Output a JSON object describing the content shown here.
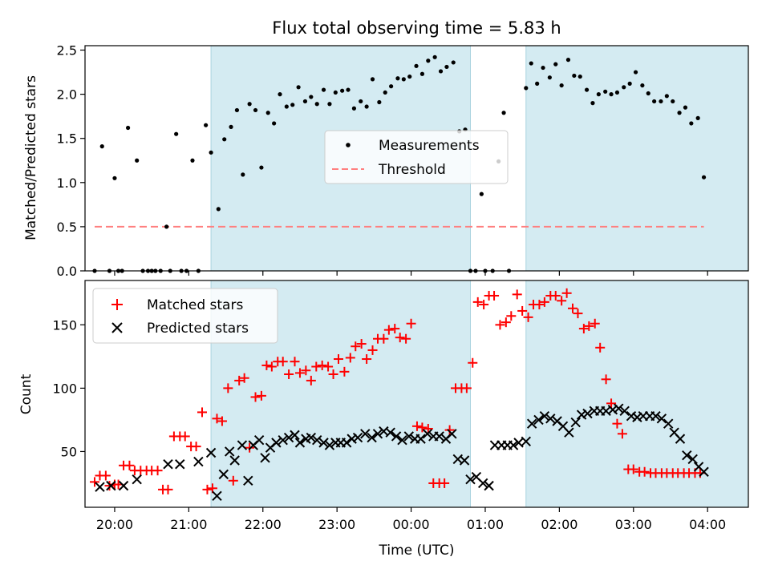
{
  "colors": {
    "shade": "#d4ebf2",
    "shade_edge": "#a9d3df",
    "measurement": "#000000",
    "threshold": "#ff7f7f",
    "matched": "#ff0000",
    "predicted": "#000000"
  },
  "chart_data": [
    {
      "type": "scatter",
      "title": "Flux total observing time = 5.83 h",
      "xlabel": "",
      "ylabel": "Matched/Predicted stars",
      "xlim": [
        19.6,
        28.55
      ],
      "ylim": [
        0,
        2.55
      ],
      "ytick_labels": [
        "0.0",
        "0.5",
        "1.0",
        "1.5",
        "2.0",
        "2.5"
      ],
      "legend_position": "center",
      "shaded_intervals_hours": [
        [
          21.3,
          24.8
        ],
        [
          25.55,
          28.9
        ]
      ],
      "series": [
        {
          "name": "Measurements",
          "x": [
            19.73,
            19.83,
            19.93,
            20.0,
            20.05,
            20.1,
            20.18,
            20.3,
            20.38,
            20.45,
            20.5,
            20.55,
            20.62,
            20.7,
            20.75,
            20.83,
            20.9,
            20.97,
            21.05,
            21.13,
            21.23,
            21.3,
            21.4,
            21.48,
            21.57,
            21.65,
            21.73,
            21.82,
            21.9,
            21.98,
            22.07,
            22.15,
            22.23,
            22.32,
            22.4,
            22.48,
            22.57,
            22.65,
            22.73,
            22.82,
            22.9,
            22.98,
            23.07,
            23.15,
            23.23,
            23.32,
            23.4,
            23.48,
            23.57,
            23.65,
            23.73,
            23.82,
            23.9,
            23.98,
            24.07,
            24.15,
            24.23,
            24.32,
            24.4,
            24.48,
            24.57,
            24.65,
            24.73,
            24.8,
            24.87,
            24.95,
            25.0,
            25.1,
            25.18,
            25.25,
            25.32,
            25.55,
            25.62,
            25.7,
            25.78,
            25.87,
            25.95,
            26.03,
            26.12,
            26.2,
            26.28,
            26.37,
            26.45,
            26.53,
            26.62,
            26.7,
            26.78,
            26.87,
            26.95,
            27.03,
            27.12,
            27.2,
            27.28,
            27.37,
            27.45,
            27.53,
            27.62,
            27.7,
            27.78,
            27.87,
            27.95
          ],
          "y": [
            0,
            1.41,
            0,
            1.05,
            0,
            0,
            1.62,
            1.25,
            0,
            0,
            0,
            0,
            0,
            0.5,
            0,
            1.55,
            0,
            0,
            1.25,
            0,
            1.65,
            1.34,
            0.7,
            1.49,
            1.63,
            1.82,
            1.09,
            1.89,
            1.82,
            1.17,
            1.79,
            1.67,
            2.0,
            1.86,
            1.88,
            2.08,
            1.92,
            1.97,
            1.89,
            2.05,
            1.89,
            2.02,
            2.04,
            2.05,
            1.84,
            1.92,
            1.86,
            2.17,
            1.91,
            2.02,
            2.09,
            2.18,
            2.17,
            2.2,
            2.32,
            2.23,
            2.38,
            2.42,
            2.26,
            2.31,
            2.36,
            1.58,
            1.6,
            0,
            0,
            0.87,
            0,
            0,
            1.24,
            1.79,
            0,
            2.07,
            2.35,
            2.12,
            2.3,
            2.19,
            2.34,
            2.1,
            2.39,
            2.21,
            2.2,
            2.05,
            1.9,
            2.0,
            2.03,
            2.0,
            2.02,
            2.08,
            2.12,
            2.25,
            2.1,
            2.01,
            1.92,
            1.92,
            1.98,
            1.92,
            1.79,
            1.85,
            1.67,
            1.73,
            1.06
          ]
        },
        {
          "name": "Threshold",
          "x": [
            19.73,
            27.95
          ],
          "y": [
            0.5,
            0.5
          ]
        }
      ]
    },
    {
      "type": "scatter",
      "title": "",
      "xlabel": "Time (UTC)",
      "ylabel": "Count",
      "xlim": [
        19.6,
        28.55
      ],
      "ylim": [
        6,
        185
      ],
      "x_tick_labels": [
        "20:00",
        "21:00",
        "22:00",
        "23:00",
        "00:00",
        "01:00",
        "02:00",
        "03:00",
        "04:00"
      ],
      "ytick_labels": [
        "50",
        "100",
        "150"
      ],
      "legend_position": "upper left",
      "shaded_intervals_hours": [
        [
          21.3,
          24.8
        ],
        [
          25.55,
          28.9
        ]
      ],
      "series": [
        {
          "name": "Matched stars",
          "x": [
            19.73,
            19.8,
            19.88,
            19.93,
            20.0,
            20.05,
            20.12,
            20.2,
            20.27,
            20.35,
            20.43,
            20.5,
            20.58,
            20.65,
            20.72,
            20.8,
            20.88,
            20.95,
            21.03,
            21.1,
            21.18,
            21.25,
            21.32,
            21.38,
            21.45,
            21.53,
            21.6,
            21.68,
            21.75,
            21.82,
            21.9,
            21.98,
            22.05,
            22.12,
            22.2,
            22.27,
            22.35,
            22.43,
            22.5,
            22.58,
            22.65,
            22.72,
            22.8,
            22.88,
            22.95,
            23.02,
            23.1,
            23.18,
            23.25,
            23.33,
            23.4,
            23.48,
            23.55,
            23.63,
            23.7,
            23.78,
            23.85,
            23.93,
            24.0,
            24.08,
            24.15,
            24.23,
            24.3,
            24.38,
            24.45,
            24.52,
            24.6,
            24.68,
            24.75,
            24.83,
            24.9,
            24.98,
            25.05,
            25.12,
            25.2,
            25.28,
            25.35,
            25.43,
            25.5,
            25.58,
            25.65,
            25.73,
            25.8,
            25.88,
            25.95,
            26.03,
            26.1,
            26.18,
            26.25,
            26.33,
            26.4,
            26.48,
            26.55,
            26.63,
            26.7,
            26.78,
            26.85,
            26.93,
            27.0,
            27.08,
            27.15,
            27.23,
            27.3,
            27.38,
            27.45,
            27.53,
            27.6,
            27.68,
            27.75,
            27.83,
            27.9
          ],
          "y": [
            26,
            31,
            31,
            23,
            24,
            24,
            39,
            39,
            35,
            35,
            35,
            35,
            35,
            20,
            20,
            62,
            62,
            62,
            54,
            54,
            81,
            20,
            21,
            76,
            74,
            100,
            27,
            106,
            108,
            53,
            93,
            94,
            118,
            117,
            121,
            121,
            111,
            121,
            112,
            114,
            106,
            117,
            118,
            117,
            111,
            123,
            113,
            124,
            133,
            135,
            123,
            130,
            139,
            139,
            146,
            147,
            140,
            139,
            151,
            70,
            69,
            68,
            25,
            25,
            25,
            67,
            100,
            100,
            100,
            120,
            168,
            166,
            173,
            173,
            150,
            152,
            157,
            174,
            161,
            156,
            166,
            166,
            168,
            173,
            173,
            169,
            175,
            163,
            159,
            147,
            149,
            151,
            132,
            107,
            88,
            72,
            64,
            36,
            36,
            34,
            34,
            33,
            33,
            33,
            33,
            33,
            33,
            33,
            33,
            33,
            33
          ],
          "y_note": ""
        },
        {
          "name": "Predicted stars",
          "x": [
            19.8,
            19.95,
            20.12,
            20.3,
            20.72,
            20.88,
            21.13,
            21.3,
            21.38,
            21.47,
            21.55,
            21.62,
            21.72,
            21.8,
            21.87,
            21.95,
            22.03,
            22.1,
            22.18,
            22.27,
            22.35,
            22.43,
            22.5,
            22.58,
            22.65,
            22.73,
            22.82,
            22.9,
            22.98,
            23.05,
            23.13,
            23.2,
            23.28,
            23.38,
            23.47,
            23.55,
            23.63,
            23.72,
            23.8,
            23.88,
            23.97,
            24.05,
            24.13,
            24.22,
            24.3,
            24.38,
            24.47,
            24.55,
            24.63,
            24.72,
            24.8,
            24.88,
            24.97,
            25.05,
            25.13,
            25.22,
            25.3,
            25.38,
            25.45,
            25.55,
            25.63,
            25.72,
            25.8,
            25.88,
            25.97,
            26.05,
            26.13,
            26.22,
            26.3,
            26.38,
            26.47,
            26.55,
            26.63,
            26.72,
            26.8,
            26.88,
            26.97,
            27.05,
            27.13,
            27.22,
            27.3,
            27.38,
            27.47,
            27.55,
            27.63,
            27.72,
            27.8,
            27.88,
            27.95
          ],
          "y": [
            22,
            23,
            23,
            28,
            40,
            40,
            42,
            49,
            15,
            32,
            50,
            43,
            55,
            27,
            55,
            59,
            45,
            53,
            57,
            59,
            61,
            63,
            57,
            60,
            61,
            59,
            57,
            55,
            57,
            57,
            57,
            60,
            61,
            64,
            61,
            64,
            66,
            65,
            62,
            59,
            62,
            60,
            60,
            64,
            62,
            62,
            60,
            64,
            44,
            43,
            28,
            30,
            25,
            23,
            55,
            55,
            55,
            55,
            57,
            58,
            72,
            75,
            78,
            76,
            74,
            70,
            65,
            73,
            79,
            80,
            82,
            82,
            82,
            83,
            84,
            82,
            78,
            77,
            78,
            78,
            78,
            76,
            72,
            65,
            60,
            47,
            44,
            38,
            34
          ],
          "y_note": ""
        }
      ]
    }
  ]
}
